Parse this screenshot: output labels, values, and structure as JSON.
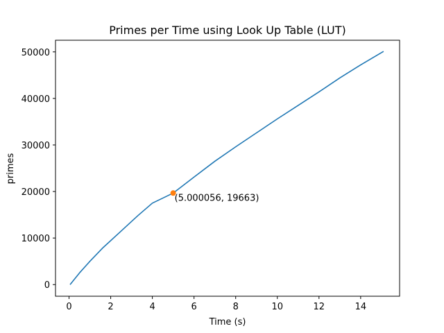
{
  "chart_data": {
    "type": "line",
    "title": "Primes per Time using Look Up Table (LUT)",
    "xlabel": "Time (s)",
    "ylabel": "primes",
    "xlim": [
      -0.65,
      15.87
    ],
    "ylim": [
      -2500,
      52500
    ],
    "xticks": [
      0,
      2,
      4,
      6,
      8,
      10,
      12,
      14
    ],
    "yticks": [
      0,
      10000,
      20000,
      30000,
      40000,
      50000
    ],
    "grid": false,
    "series": [
      {
        "color": "#1f77b4",
        "points": [
          [
            0.05,
            0
          ],
          [
            0.5,
            2500
          ],
          [
            1.0,
            5000
          ],
          [
            1.6,
            7800
          ],
          [
            2.5,
            11500
          ],
          [
            3.3,
            14800
          ],
          [
            4.0,
            17500
          ],
          [
            5.0,
            19663
          ],
          [
            6.0,
            23100
          ],
          [
            7.0,
            26500
          ],
          [
            8.0,
            29600
          ],
          [
            9.0,
            32600
          ],
          [
            10.0,
            35600
          ],
          [
            11.0,
            38500
          ],
          [
            12.0,
            41400
          ],
          [
            13.0,
            44400
          ],
          [
            14.0,
            47200
          ],
          [
            15.1,
            50100
          ]
        ]
      }
    ],
    "highlight": {
      "x": 5.000056,
      "y": 19663,
      "color": "#ff7f0e",
      "label": "(5.000056, 19663)"
    }
  }
}
